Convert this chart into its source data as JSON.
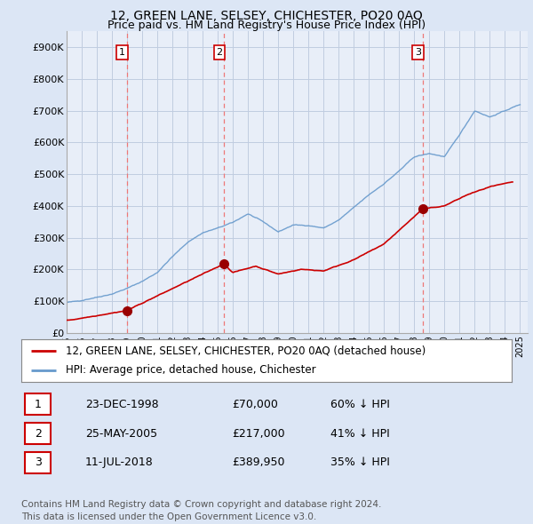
{
  "title": "12, GREEN LANE, SELSEY, CHICHESTER, PO20 0AQ",
  "subtitle": "Price paid vs. HM Land Registry's House Price Index (HPI)",
  "ylim": [
    0,
    950000
  ],
  "yticks": [
    0,
    100000,
    200000,
    300000,
    400000,
    500000,
    600000,
    700000,
    800000,
    900000
  ],
  "ytick_labels": [
    "£0",
    "£100K",
    "£200K",
    "£300K",
    "£400K",
    "£500K",
    "£600K",
    "£700K",
    "£800K",
    "£900K"
  ],
  "background_color": "#dce6f5",
  "plot_bg_color": "#e8eef8",
  "grid_color": "#c0cce0",
  "hpi_color": "#6699cc",
  "price_color": "#cc0000",
  "dashed_line_color": "#ee7777",
  "marker_color": "#990000",
  "transaction_dates": [
    1998.98,
    2005.4,
    2018.55
  ],
  "transaction_prices": [
    70000,
    217000,
    389950
  ],
  "transaction_labels": [
    "1",
    "2",
    "3"
  ],
  "legend_property_label": "12, GREEN LANE, SELSEY, CHICHESTER, PO20 0AQ (detached house)",
  "legend_hpi_label": "HPI: Average price, detached house, Chichester",
  "table_rows": [
    [
      "1",
      "23-DEC-1998",
      "£70,000",
      "60% ↓ HPI"
    ],
    [
      "2",
      "25-MAY-2005",
      "£217,000",
      "41% ↓ HPI"
    ],
    [
      "3",
      "11-JUL-2018",
      "£389,950",
      "35% ↓ HPI"
    ]
  ],
  "footer": "Contains HM Land Registry data © Crown copyright and database right 2024.\nThis data is licensed under the Open Government Licence v3.0.",
  "title_fontsize": 10,
  "subtitle_fontsize": 9,
  "tick_fontsize": 8,
  "legend_fontsize": 8.5,
  "table_fontsize": 9,
  "footer_fontsize": 7.5,
  "hpi_base_points": [
    [
      1995,
      95000
    ],
    [
      1996,
      102000
    ],
    [
      1997,
      112000
    ],
    [
      1998,
      122000
    ],
    [
      1999,
      140000
    ],
    [
      2000,
      162000
    ],
    [
      2001,
      190000
    ],
    [
      2002,
      240000
    ],
    [
      2003,
      285000
    ],
    [
      2004,
      315000
    ],
    [
      2005,
      330000
    ],
    [
      2006,
      348000
    ],
    [
      2007,
      375000
    ],
    [
      2008,
      350000
    ],
    [
      2009,
      318000
    ],
    [
      2010,
      340000
    ],
    [
      2011,
      338000
    ],
    [
      2012,
      330000
    ],
    [
      2013,
      355000
    ],
    [
      2014,
      395000
    ],
    [
      2015,
      435000
    ],
    [
      2016,
      470000
    ],
    [
      2017,
      510000
    ],
    [
      2018,
      555000
    ],
    [
      2019,
      565000
    ],
    [
      2020,
      555000
    ],
    [
      2021,
      625000
    ],
    [
      2022,
      700000
    ],
    [
      2023,
      680000
    ],
    [
      2024,
      700000
    ],
    [
      2025,
      720000
    ]
  ],
  "prop_base_points": [
    [
      1995.0,
      38000
    ],
    [
      1998.98,
      70000
    ],
    [
      2005.4,
      217000
    ],
    [
      2006.0,
      190000
    ],
    [
      2007.5,
      210000
    ],
    [
      2009.0,
      185000
    ],
    [
      2010.5,
      200000
    ],
    [
      2012.0,
      195000
    ],
    [
      2014.0,
      230000
    ],
    [
      2016.0,
      280000
    ],
    [
      2018.55,
      389950
    ],
    [
      2020.0,
      400000
    ],
    [
      2021.5,
      435000
    ],
    [
      2023.0,
      460000
    ],
    [
      2024.5,
      475000
    ]
  ]
}
